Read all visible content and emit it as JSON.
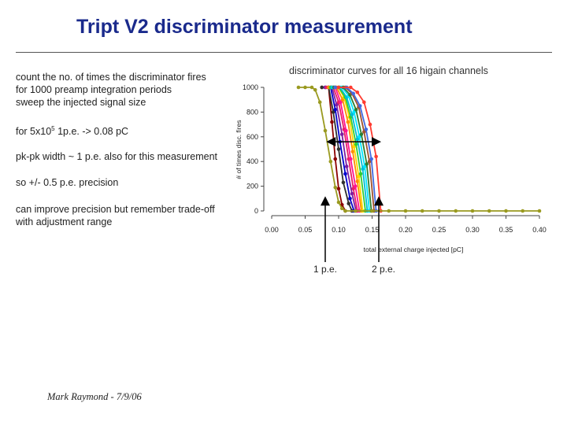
{
  "slide": {
    "title": "Tript V2 discriminator measurement",
    "lines": [
      "count the no. of times the discriminator fires",
      "for 1000 preamp integration periods",
      "sweep the injected signal size",
      "for 5x10",
      "5",
      " 1p.e. -> 0.08 pC",
      "pk-pk width ~ 1 p.e. also for this measurement",
      "so +/- 0.5 p.e. precision",
      "can improve precision but remember trade-off",
      "with adjustment range"
    ],
    "footer": "Mark Raymond - 7/9/06"
  },
  "chart_data": {
    "type": "line",
    "title": "discriminator curves for all 16 higain channels",
    "xlabel": "total external charge injected [pC]",
    "ylabel": "# of times disc. fires",
    "xlim": [
      0,
      0.4
    ],
    "ylim": [
      0,
      1000
    ],
    "xticks": [
      "0.00",
      "0.05",
      "0.10",
      "0.15",
      "0.20",
      "0.25",
      "0.30",
      "0.35",
      "0.40"
    ],
    "yticks": [
      "0",
      "200",
      "400",
      "600",
      "800",
      "1000"
    ],
    "grid": false,
    "annotations": {
      "pe1": "1 p.e.",
      "pe2": "2 p.e."
    },
    "series": [
      {
        "color": "#8b0000",
        "values": [
          [
            0.075,
            1000
          ],
          [
            0.085,
            1000
          ],
          [
            0.09,
            720
          ],
          [
            0.095,
            420
          ],
          [
            0.1,
            180
          ],
          [
            0.105,
            50
          ],
          [
            0.11,
            0
          ]
        ]
      },
      {
        "color": "#2f2f2f",
        "values": [
          [
            0.075,
            1000
          ],
          [
            0.085,
            1000
          ],
          [
            0.092,
            800
          ],
          [
            0.1,
            500
          ],
          [
            0.107,
            230
          ],
          [
            0.115,
            60
          ],
          [
            0.12,
            0
          ]
        ]
      },
      {
        "color": "#0000cc",
        "values": [
          [
            0.08,
            1000
          ],
          [
            0.088,
            1000
          ],
          [
            0.095,
            820
          ],
          [
            0.102,
            560
          ],
          [
            0.11,
            300
          ],
          [
            0.117,
            100
          ],
          [
            0.123,
            0
          ]
        ]
      },
      {
        "color": "#7b1fa2",
        "values": [
          [
            0.08,
            1000
          ],
          [
            0.09,
            1000
          ],
          [
            0.097,
            860
          ],
          [
            0.105,
            620
          ],
          [
            0.112,
            360
          ],
          [
            0.12,
            140
          ],
          [
            0.126,
            0
          ]
        ]
      },
      {
        "color": "#e91e63",
        "values": [
          [
            0.082,
            1000
          ],
          [
            0.092,
            1000
          ],
          [
            0.1,
            880
          ],
          [
            0.108,
            660
          ],
          [
            0.115,
            420
          ],
          [
            0.122,
            180
          ],
          [
            0.128,
            0
          ]
        ]
      },
      {
        "color": "#ff1493",
        "values": [
          [
            0.085,
            1000
          ],
          [
            0.095,
            1000
          ],
          [
            0.103,
            880
          ],
          [
            0.111,
            650
          ],
          [
            0.118,
            420
          ],
          [
            0.125,
            200
          ],
          [
            0.131,
            0
          ]
        ]
      },
      {
        "color": "#ff8c00",
        "values": [
          [
            0.085,
            1000
          ],
          [
            0.097,
            1000
          ],
          [
            0.106,
            900
          ],
          [
            0.114,
            720
          ],
          [
            0.121,
            480
          ],
          [
            0.128,
            240
          ],
          [
            0.134,
            0
          ]
        ]
      },
      {
        "color": "#ffd700",
        "values": [
          [
            0.088,
            1000
          ],
          [
            0.1,
            1000
          ],
          [
            0.108,
            920
          ],
          [
            0.116,
            760
          ],
          [
            0.123,
            520
          ],
          [
            0.13,
            280
          ],
          [
            0.136,
            0
          ]
        ]
      },
      {
        "color": "#32cd32",
        "values": [
          [
            0.088,
            1000
          ],
          [
            0.1,
            1000
          ],
          [
            0.11,
            920
          ],
          [
            0.118,
            760
          ],
          [
            0.126,
            540
          ],
          [
            0.133,
            300
          ],
          [
            0.14,
            0
          ]
        ]
      },
      {
        "color": "#00bcd4",
        "values": [
          [
            0.09,
            1000
          ],
          [
            0.102,
            1000
          ],
          [
            0.112,
            920
          ],
          [
            0.12,
            780
          ],
          [
            0.128,
            580
          ],
          [
            0.136,
            340
          ],
          [
            0.143,
            0
          ]
        ]
      },
      {
        "color": "#00e5ff",
        "values": [
          [
            0.092,
            1000
          ],
          [
            0.105,
            1000
          ],
          [
            0.115,
            930
          ],
          [
            0.123,
            800
          ],
          [
            0.131,
            600
          ],
          [
            0.139,
            360
          ],
          [
            0.146,
            0
          ]
        ]
      },
      {
        "color": "#2e7d32",
        "values": [
          [
            0.093,
            1000
          ],
          [
            0.107,
            1000
          ],
          [
            0.117,
            940
          ],
          [
            0.126,
            820
          ],
          [
            0.134,
            620
          ],
          [
            0.142,
            380
          ],
          [
            0.149,
            0
          ]
        ]
      },
      {
        "color": "#a0522d",
        "values": [
          [
            0.095,
            1000
          ],
          [
            0.11,
            1000
          ],
          [
            0.12,
            950
          ],
          [
            0.13,
            840
          ],
          [
            0.138,
            640
          ],
          [
            0.146,
            400
          ],
          [
            0.153,
            0
          ]
        ]
      },
      {
        "color": "#4169e1",
        "values": [
          [
            0.095,
            1000
          ],
          [
            0.112,
            1000
          ],
          [
            0.122,
            950
          ],
          [
            0.132,
            850
          ],
          [
            0.141,
            660
          ],
          [
            0.149,
            420
          ],
          [
            0.156,
            0
          ]
        ]
      },
      {
        "color": "#ff3b30",
        "values": [
          [
            0.1,
            1000
          ],
          [
            0.118,
            1000
          ],
          [
            0.128,
            960
          ],
          [
            0.138,
            880
          ],
          [
            0.147,
            700
          ],
          [
            0.156,
            440
          ],
          [
            0.163,
            0
          ]
        ]
      },
      {
        "color": "#9a9a20",
        "values": [
          [
            0.04,
            1000
          ],
          [
            0.05,
            1000
          ],
          [
            0.06,
            1000
          ],
          [
            0.065,
            980
          ],
          [
            0.072,
            880
          ],
          [
            0.08,
            650
          ],
          [
            0.088,
            400
          ],
          [
            0.095,
            190
          ],
          [
            0.1,
            70
          ],
          [
            0.105,
            20
          ],
          [
            0.11,
            0
          ],
          [
            0.125,
            0
          ],
          [
            0.15,
            0
          ],
          [
            0.175,
            0
          ],
          [
            0.2,
            0
          ],
          [
            0.225,
            0
          ],
          [
            0.25,
            0
          ],
          [
            0.275,
            0
          ],
          [
            0.3,
            0
          ],
          [
            0.325,
            0
          ],
          [
            0.35,
            0
          ],
          [
            0.375,
            0
          ],
          [
            0.4,
            0
          ]
        ]
      }
    ]
  }
}
